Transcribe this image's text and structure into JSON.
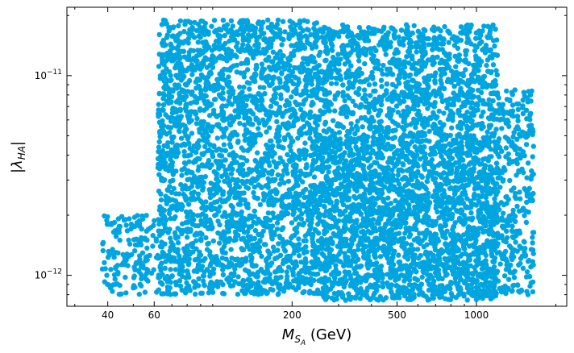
{
  "chart_data": {
    "type": "scatter",
    "title": "",
    "xlabel_main": "M",
    "xlabel_sub_main": "S",
    "xlabel_sub_sub": "A",
    "xlabel_unit": " (GeV)",
    "ylabel_main": "λ",
    "ylabel_sub": "HA",
    "x_scale": "log",
    "y_scale": "log",
    "xlim": [
      28,
      2200
    ],
    "ylim": [
      7e-13,
      2.2e-11
    ],
    "x_ticks": [
      {
        "value": 40,
        "label": "40"
      },
      {
        "value": 60,
        "label": "60"
      },
      {
        "value": 200,
        "label": "200"
      },
      {
        "value": 500,
        "label": "500"
      },
      {
        "value": 1000,
        "label": "1000"
      }
    ],
    "y_ticks": [
      {
        "value": 1e-12,
        "label_base": "10",
        "label_exp": "−12"
      },
      {
        "value": 1e-11,
        "label_base": "10",
        "label_exp": "−11"
      }
    ],
    "grid": false,
    "legend": "none",
    "marker_color": "#00a5e0",
    "series": [
      {
        "region_description": "dense scatter band",
        "regions": [
          {
            "x_range": [
              38,
              62
            ],
            "y_range": [
              8e-13,
              2e-12
            ]
          },
          {
            "x_range": [
              62,
              260
            ],
            "y_range": [
              8e-13,
              1.9e-11
            ]
          },
          {
            "x_range": [
              260,
              1200
            ],
            "y_range": [
              7.5e-13,
              1.8e-11
            ]
          },
          {
            "x_range": [
              1200,
              1650
            ],
            "y_range": [
              8e-13,
              8.5e-12
            ]
          }
        ]
      }
    ]
  }
}
